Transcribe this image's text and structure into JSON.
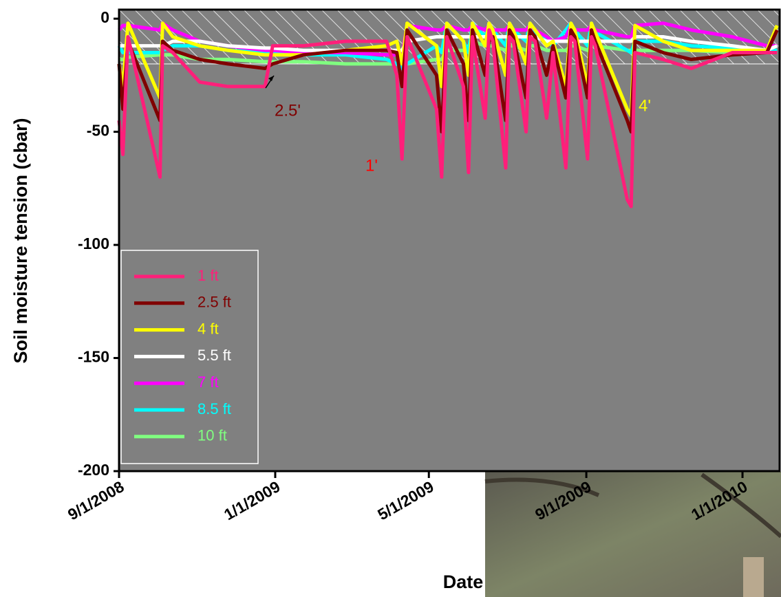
{
  "chart_data": {
    "type": "line",
    "ylabel": "Soil moisture tension (cbar)",
    "xlabel": "Date",
    "xlim": [
      "9/1/2008",
      "1/30/2010"
    ],
    "xticks": [
      "9/1/2008",
      "1/1/2009",
      "5/1/2009",
      "9/1/2009",
      "1/1/2010"
    ],
    "ylim": [
      -200,
      4
    ],
    "yticks": [
      0,
      -50,
      -100,
      -150,
      -200
    ],
    "hatched_band": [
      -20,
      4
    ],
    "legend": "lower left",
    "x": [
      "9/1/2008",
      "9/4/2008",
      "9/8/2008",
      "10/3/2008",
      "10/5/2008",
      "10/13/2008",
      "11/3/2008",
      "11/25/2008",
      "12/24/2008",
      "12/30/2008",
      "1/23/2009",
      "2/25/2009",
      "3/29/2009",
      "4/6/2009",
      "4/10/2009",
      "4/14/2009",
      "5/7/2009",
      "5/11/2009",
      "5/15/2009",
      "5/28/2009",
      "6/1/2009",
      "6/4/2009",
      "6/14/2009",
      "6/17/2009",
      "6/20/2009",
      "6/30/2009",
      "7/3/2009",
      "7/6/2009",
      "7/16/2009",
      "7/19/2009",
      "7/23/2009",
      "8/1/2009",
      "8/6/2009",
      "8/16/2009",
      "8/20/2009",
      "8/23/2009",
      "9/2/2009",
      "9/5/2009",
      "9/8/2009",
      "10/3/2009",
      "10/6/2009",
      "10/9/2009",
      "10/31/2009",
      "11/22/2009",
      "12/24/2009",
      "1/20/2010",
      "1/28/2010"
    ],
    "series": [
      {
        "name": "1 ft",
        "color": "#ff1f7a",
        "values": [
          -45,
          -60,
          -8,
          -70,
          -12,
          -15,
          -28,
          -30,
          -30,
          -12,
          -12,
          -10,
          -10,
          -25,
          -62,
          -8,
          -40,
          -70,
          -8,
          -30,
          -68,
          -8,
          -44,
          -5,
          -10,
          -66,
          -8,
          -10,
          -50,
          -8,
          -10,
          -44,
          -15,
          -66,
          -8,
          -10,
          -62,
          -8,
          -12,
          -80,
          -83,
          -15,
          -18,
          -22,
          -15,
          -15,
          -15
        ]
      },
      {
        "name": "2.5 ft",
        "color": "#800000",
        "values": [
          -20,
          -40,
          -10,
          -45,
          -10,
          -14,
          -18,
          -20,
          -22,
          -20,
          -16,
          -14,
          -14,
          -15,
          -30,
          -5,
          -25,
          -50,
          -5,
          -20,
          -45,
          -5,
          -25,
          -10,
          -8,
          -45,
          -5,
          -8,
          -35,
          -5,
          -8,
          -25,
          -12,
          -35,
          -5,
          -8,
          -35,
          -5,
          -10,
          -45,
          -50,
          -10,
          -15,
          -18,
          -16,
          -15,
          -5
        ]
      },
      {
        "name": "4 ft",
        "color": "#ffff00",
        "values": [
          -20,
          -30,
          -2,
          -35,
          -2,
          -8,
          -12,
          -14,
          -16,
          -16,
          -16,
          -14,
          -12,
          -10,
          -20,
          -2,
          -12,
          -30,
          -2,
          -10,
          -25,
          -2,
          -12,
          -2,
          -5,
          -25,
          -2,
          -5,
          -20,
          -2,
          -5,
          -12,
          -10,
          -30,
          -2,
          -5,
          -30,
          -2,
          -6,
          -40,
          -43,
          -3,
          -10,
          -14,
          -14,
          -14,
          -3
        ]
      },
      {
        "name": "5.5 ft",
        "color": "#ffffff",
        "values": [
          -12,
          -12,
          -12,
          -12,
          -12,
          -10,
          -10,
          -12,
          -13,
          -13,
          -14,
          -14,
          -14,
          -14,
          -14,
          -10,
          -8,
          -8,
          -8,
          -8,
          -8,
          -8,
          -8,
          -8,
          -8,
          -8,
          -8,
          -8,
          -8,
          -8,
          -8,
          -10,
          -10,
          -10,
          -10,
          -10,
          -10,
          -10,
          -10,
          -10,
          -10,
          -8,
          -8,
          -10,
          -12,
          -14,
          -12
        ]
      },
      {
        "name": "7 ft",
        "color": "#ff00ff",
        "values": [
          -5,
          -3,
          -3,
          -5,
          -2,
          -5,
          -10,
          -12,
          -14,
          -14,
          -15,
          -15,
          -16,
          -16,
          -16,
          -3,
          -5,
          -5,
          -3,
          -5,
          -5,
          -3,
          -5,
          -3,
          -5,
          -5,
          -3,
          -5,
          -5,
          -3,
          -5,
          -8,
          -10,
          -8,
          -3,
          -5,
          -5,
          -3,
          -5,
          -8,
          -8,
          -3,
          -2,
          -5,
          -8,
          -12,
          -12
        ]
      },
      {
        "name": "8.5 ft",
        "color": "#00ffff",
        "values": [
          -12,
          -15,
          -15,
          -15,
          -14,
          -12,
          -12,
          -14,
          -15,
          -15,
          -16,
          -16,
          -18,
          -20,
          -22,
          -20,
          -12,
          -15,
          -2,
          -10,
          -15,
          -2,
          -8,
          -2,
          -5,
          -12,
          -2,
          -5,
          -10,
          -2,
          -6,
          -10,
          -12,
          -5,
          -2,
          -5,
          -12,
          -2,
          -6,
          -14,
          -15,
          -10,
          -10,
          -12,
          -13,
          -14,
          -14
        ]
      },
      {
        "name": "10 ft",
        "color": "#80ff80",
        "values": [
          -18,
          -18,
          -17,
          -16,
          -16,
          -16,
          -18,
          -18,
          -19,
          -19,
          -19,
          -20,
          -20,
          -20,
          -20,
          -20,
          -18,
          -18,
          -14,
          -14,
          -12,
          -10,
          -12,
          -12,
          -12,
          -14,
          -12,
          -12,
          -14,
          -12,
          -12,
          -14,
          -14,
          -14,
          -12,
          -12,
          -14,
          -12,
          -12,
          -14,
          -14,
          -14,
          -14,
          -14,
          -15,
          -15,
          -15
        ]
      }
    ],
    "annotations": [
      {
        "text": "2.5'",
        "color": "#800000"
      },
      {
        "text": "1'",
        "color": "#ff0000"
      },
      {
        "text": "4'",
        "color": "#ffff00"
      }
    ]
  }
}
